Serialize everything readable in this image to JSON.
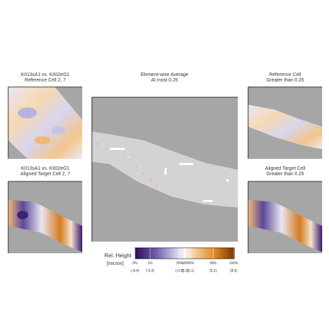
{
  "panels": [
    {
      "title": [
        "K013sA1 vs. K002eG1",
        "Reference Cell 2, 7"
      ]
    },
    {
      "title": [
        "K013sA1 vs. K002eG1",
        "Aligned Target Cell 2, 7"
      ]
    },
    {
      "title": [
        "Element-wise Average",
        "At most 0.25"
      ]
    },
    {
      "title": [
        "Reference Cell",
        "Greater than 0.25"
      ]
    },
    {
      "title": [
        "Aligned Target Cell",
        "Greater than 0.25"
      ]
    }
  ],
  "colorbar": {
    "label": [
      "Rel. Height",
      "[micron]"
    ],
    "ticks": [
      {
        "percent": "0%",
        "value": "[-8.4]"
      },
      {
        "percent": "1%",
        "value": "[-6.3]"
      },
      {
        "percent": "25%",
        "value": "[-0.5]"
      },
      {
        "percent": "50%",
        "value": "[0.2]"
      },
      {
        "percent": "75%",
        "value": "[1.1]"
      },
      {
        "percent": "99%",
        "value": "[5.2]"
      },
      {
        "percent": "100%",
        "value": "[8.9]"
      }
    ]
  }
}
